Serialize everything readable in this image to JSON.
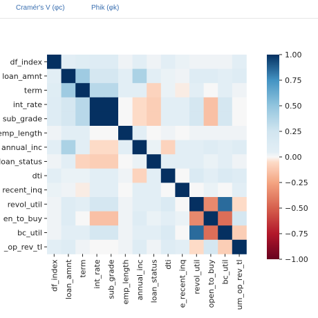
{
  "tabs": [
    {
      "label": "Cramér's V (φc)"
    },
    {
      "label": "Phik (φk)"
    }
  ],
  "chart_data": {
    "type": "heatmap",
    "row_labels": [
      "df_index",
      "loan_amnt",
      "term",
      "int_rate",
      "sub_grade",
      "emp_length",
      "annual_inc",
      "loan_status",
      "dti",
      "recent_inq",
      "revol_util",
      "en_to_buy",
      "bc_util",
      "_op_rev_tl"
    ],
    "col_labels": [
      "df_index",
      "loan_amnt",
      "term",
      "int_rate",
      "sub_grade",
      "emp_length",
      "annual_inc",
      "loan_status",
      "dti",
      "e_recent_inq",
      "revol_util",
      "open_to_buy",
      "bc_util",
      "um_op_rev_tl"
    ],
    "colorbar_ticks": [
      "1.00",
      "0.75",
      "0.50",
      "0.25",
      "0.00",
      "−0.25",
      "−0.50",
      "−0.75",
      "−1.00"
    ],
    "vmin": -1,
    "vmax": 1,
    "colormap": "RdBu",
    "matrix": [
      [
        1.0,
        0.05,
        0.08,
        0.1,
        0.1,
        0.02,
        0.05,
        0.02,
        0.05,
        0.03,
        0.02,
        0.02,
        0.02,
        0.05
      ],
      [
        0.05,
        1.0,
        0.45,
        0.2,
        0.2,
        0.05,
        0.4,
        0.05,
        0.03,
        0.02,
        0.1,
        0.1,
        0.05,
        0.1
      ],
      [
        0.08,
        0.45,
        1.0,
        0.35,
        0.35,
        0.05,
        0.05,
        -0.08,
        0.03,
        -0.02,
        0.05,
        0.0,
        0.05,
        0.02
      ],
      [
        0.1,
        0.2,
        0.35,
        1.0,
        1.0,
        0.0,
        -0.05,
        -0.1,
        0.05,
        0.05,
        0.2,
        -0.15,
        0.2,
        0.0
      ],
      [
        0.1,
        0.2,
        0.35,
        1.0,
        1.0,
        0.0,
        -0.05,
        -0.1,
        0.05,
        0.05,
        0.2,
        -0.15,
        0.2,
        0.0
      ],
      [
        0.02,
        0.05,
        0.05,
        0.0,
        0.0,
        1.0,
        0.05,
        0.0,
        0.02,
        0.0,
        0.02,
        0.02,
        0.02,
        0.02
      ],
      [
        0.05,
        0.4,
        0.05,
        -0.05,
        -0.05,
        0.05,
        1.0,
        0.03,
        -0.08,
        0.05,
        0.05,
        0.1,
        0.05,
        0.1
      ],
      [
        0.02,
        0.05,
        -0.08,
        -0.1,
        -0.1,
        0.0,
        0.03,
        1.0,
        0.05,
        0.05,
        0.05,
        0.03,
        0.05,
        0.02
      ],
      [
        0.05,
        0.03,
        0.03,
        0.05,
        0.05,
        0.02,
        -0.08,
        0.05,
        1.0,
        0.0,
        0.15,
        0.05,
        0.15,
        0.1
      ],
      [
        0.03,
        0.02,
        -0.02,
        0.05,
        0.05,
        0.0,
        0.05,
        0.05,
        0.0,
        1.0,
        0.0,
        0.03,
        0.0,
        0.05
      ],
      [
        0.02,
        0.1,
        0.05,
        0.2,
        0.2,
        0.02,
        0.05,
        0.05,
        0.15,
        0.0,
        1.0,
        -0.35,
        0.85,
        -0.05
      ],
      [
        0.02,
        0.1,
        0.0,
        -0.15,
        -0.15,
        0.02,
        0.1,
        0.03,
        0.05,
        0.03,
        -0.35,
        1.0,
        -0.45,
        0.2
      ],
      [
        0.02,
        0.05,
        0.05,
        0.2,
        0.2,
        0.02,
        0.05,
        0.05,
        0.15,
        0.0,
        0.85,
        -0.45,
        1.0,
        -0.1
      ],
      [
        0.05,
        0.1,
        0.02,
        0.0,
        0.0,
        0.02,
        0.1,
        0.02,
        0.1,
        0.05,
        -0.05,
        0.2,
        -0.1,
        1.0
      ]
    ]
  }
}
